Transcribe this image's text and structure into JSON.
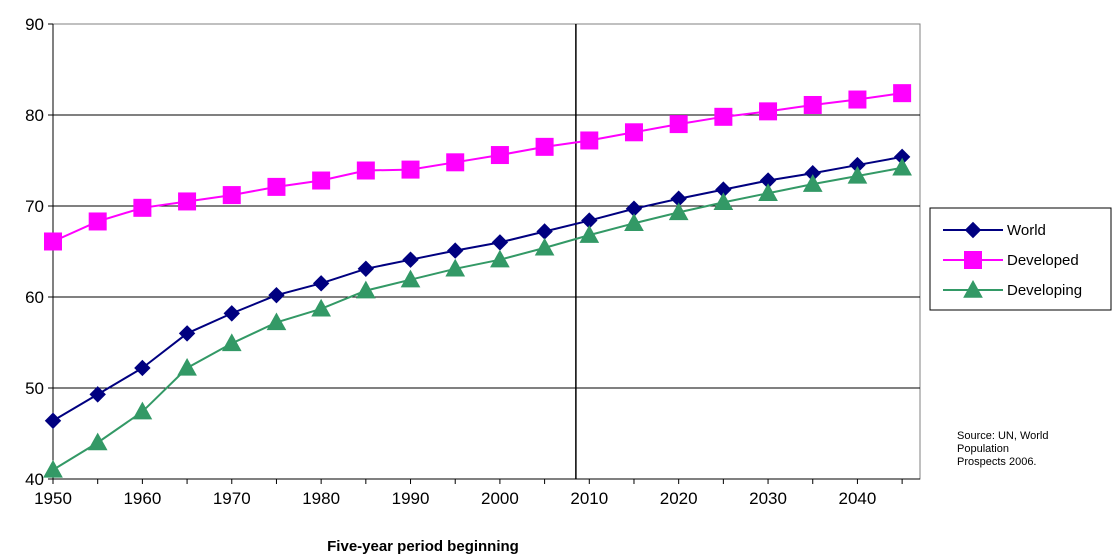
{
  "chart_data": {
    "type": "line",
    "xlabel": "Five-year period beginning",
    "ylabel": "",
    "x": [
      1950,
      1955,
      1960,
      1965,
      1970,
      1975,
      1980,
      1985,
      1990,
      1995,
      2000,
      2005,
      2010,
      2015,
      2020,
      2025,
      2030,
      2035,
      2040,
      2045
    ],
    "x_ticks": [
      1950,
      1960,
      1970,
      1980,
      1990,
      2000,
      2010,
      2020,
      2030,
      2040
    ],
    "xlim": [
      1950,
      2047
    ],
    "ylim": [
      40,
      90
    ],
    "y_ticks": [
      40,
      50,
      60,
      70,
      80,
      90
    ],
    "grid": "horizontal",
    "reference_line_x": 2008.5,
    "legend_position": "right",
    "series": [
      {
        "name": "World",
        "color": "#000080",
        "marker": "diamond",
        "values": [
          46.4,
          49.3,
          52.2,
          56.0,
          58.2,
          60.2,
          61.5,
          63.1,
          64.1,
          65.1,
          66.0,
          67.2,
          68.4,
          69.7,
          70.8,
          71.8,
          72.8,
          73.6,
          74.5,
          75.4
        ]
      },
      {
        "name": "Developed",
        "color": "#FF00FF",
        "marker": "square",
        "values": [
          66.1,
          68.3,
          69.8,
          70.5,
          71.2,
          72.1,
          72.8,
          73.9,
          74.0,
          74.8,
          75.6,
          76.5,
          77.2,
          78.1,
          79.0,
          79.8,
          80.4,
          81.1,
          81.7,
          82.4
        ]
      },
      {
        "name": "Developing",
        "color": "#339966",
        "marker": "triangle",
        "values": [
          41.0,
          44.0,
          47.4,
          52.2,
          54.9,
          57.2,
          58.7,
          60.7,
          61.9,
          63.1,
          64.1,
          65.4,
          66.8,
          68.1,
          69.3,
          70.4,
          71.4,
          72.4,
          73.3,
          74.2
        ]
      }
    ],
    "annotation": [
      "Source: UN, World",
      "Population",
      "Prospects 2006."
    ]
  }
}
